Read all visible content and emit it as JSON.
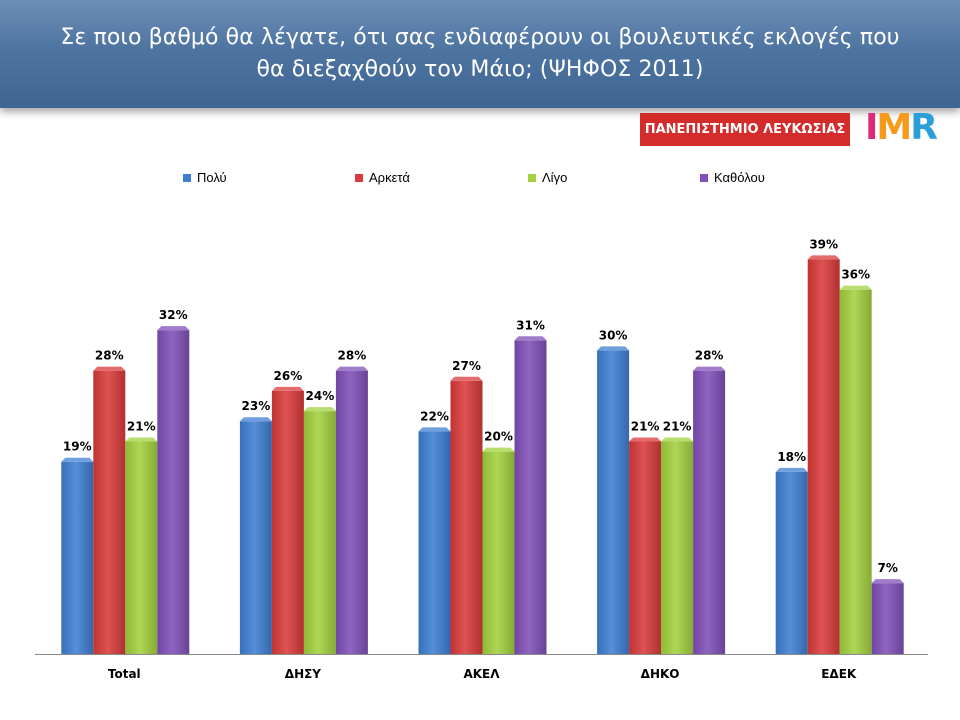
{
  "header": {
    "title_line1": "Σε ποιο βαθμό θα λέγατε, ότι σας ενδιαφέρουν οι βουλευτικές εκλογές που",
    "title_line2": "θα διεξαχθούν τον Μάιο; (ΨΗΦΟΣ 2011)"
  },
  "logos": {
    "university": "ΠΑΝΕΠΙΣΤΗΜΙΟ ΛΕΥΚΩΣΙΑΣ",
    "imr_1": "I",
    "imr_2": "M",
    "imr_3": "R"
  },
  "chart_data": {
    "type": "bar",
    "title": "",
    "xlabel": "",
    "ylabel": "",
    "ylim": [
      0,
      45
    ],
    "grid": false,
    "legend_position": "top",
    "categories": [
      "Total",
      "ΔΗΣΥ",
      "ΑΚΕΛ",
      "ΔΗΚΟ",
      "ΕΔΕΚ"
    ],
    "series": [
      {
        "name": "Πολύ",
        "color": "#3f7fd3",
        "values": [
          19,
          23,
          22,
          30,
          18
        ]
      },
      {
        "name": "Αρκετά",
        "color": "#d93a3a",
        "values": [
          28,
          26,
          27,
          21,
          39
        ]
      },
      {
        "name": "Λίγο",
        "color": "#a3d13f",
        "values": [
          21,
          24,
          20,
          21,
          36
        ]
      },
      {
        "name": "Καθόλου",
        "color": "#8050b8",
        "values": [
          32,
          28,
          31,
          28,
          7
        ]
      }
    ],
    "data_label_suffix": "%"
  }
}
